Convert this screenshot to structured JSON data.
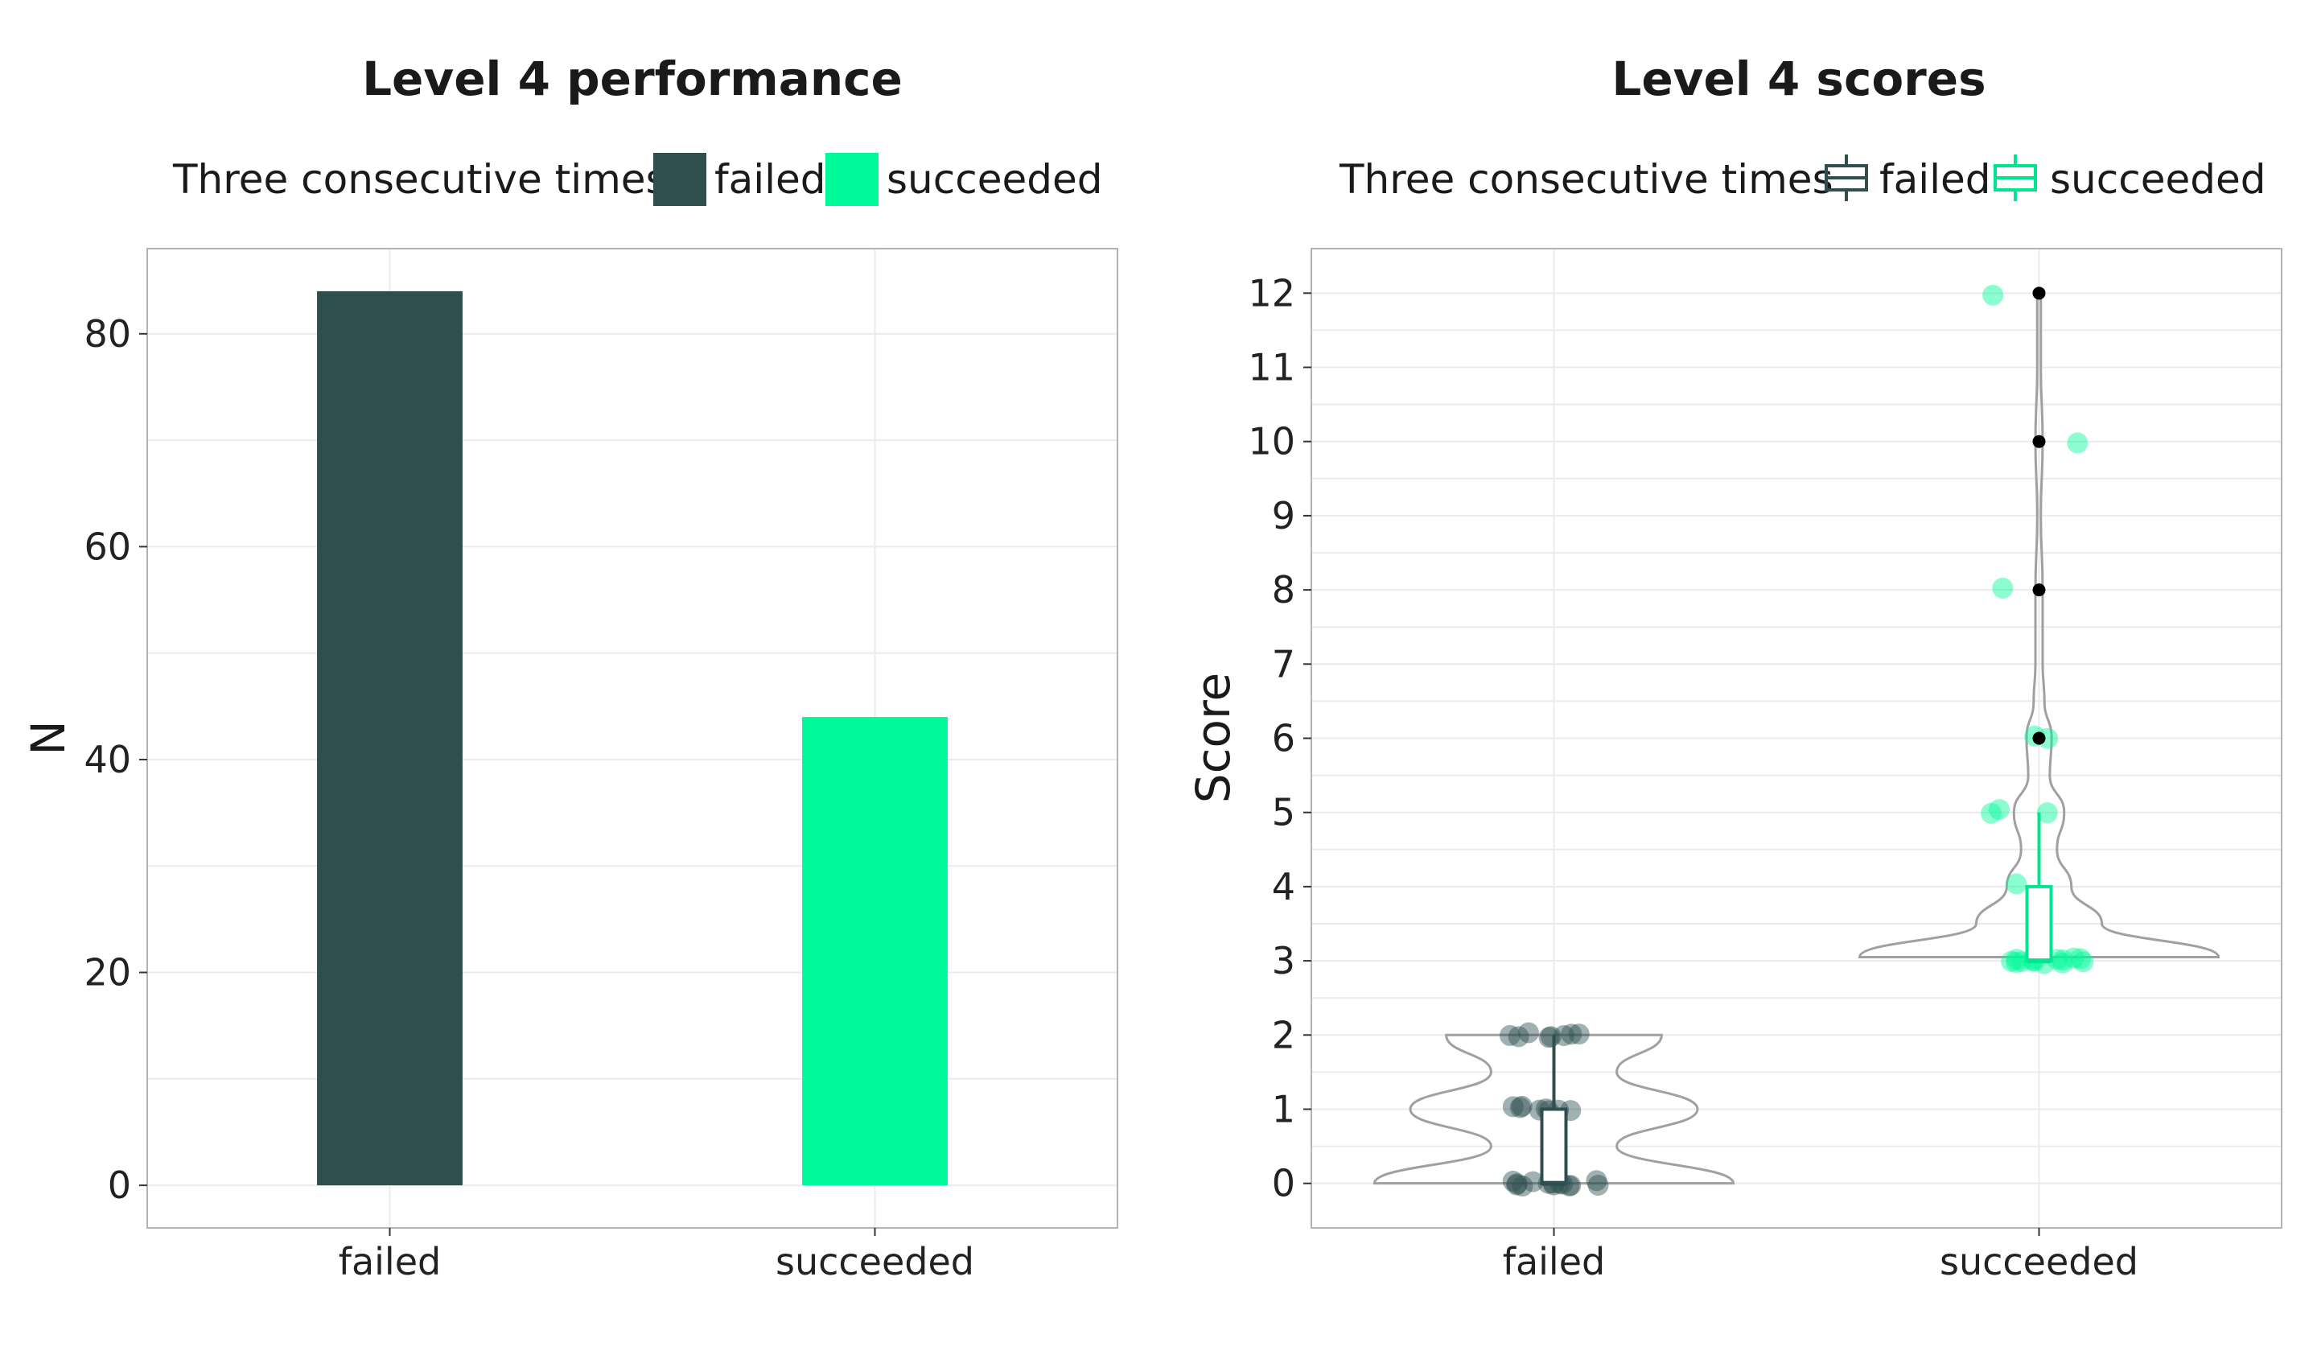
{
  "chart_data": [
    {
      "type": "bar",
      "title": "Level 4 performance",
      "xlabel": "",
      "ylabel": "N",
      "categories": [
        "failed",
        "succeeded"
      ],
      "values": [
        84,
        44
      ],
      "ylim": [
        -4,
        88
      ],
      "yticks": [
        0,
        20,
        40,
        60,
        80
      ],
      "legend": {
        "title": "Three consecutive times",
        "position": "top",
        "entries": [
          "failed",
          "succeeded"
        ]
      },
      "colors": {
        "failed": "#2f4f4f",
        "succeeded": "#00fa9a"
      },
      "grid": true
    },
    {
      "type": "scatter",
      "subtype": "violin-boxplot-jitter",
      "title": "Level 4 scores",
      "xlabel": "",
      "ylabel": "Score",
      "categories": [
        "failed",
        "succeeded"
      ],
      "ylim": [
        -0.6,
        12.6
      ],
      "yticks": [
        0,
        1,
        2,
        3,
        4,
        5,
        6,
        7,
        8,
        9,
        10,
        11,
        12
      ],
      "legend": {
        "title": "Three consecutive times",
        "position": "top",
        "entries": [
          "failed",
          "succeeded"
        ]
      },
      "colors": {
        "failed": "#2f4f4f",
        "succeeded": "#00fa9a",
        "violin": "#a0a0a0",
        "outlier": "#000000"
      },
      "grid": true,
      "boxplots": [
        {
          "category": "failed",
          "min": 0,
          "q1": 0,
          "median": 0,
          "q3": 1,
          "max": 2,
          "outliers": []
        },
        {
          "category": "succeeded",
          "min": 3,
          "q1": 3,
          "median": 3,
          "q3": 4,
          "max": 5,
          "outliers": [
            6,
            8,
            10,
            12
          ]
        }
      ],
      "violins": [
        {
          "category": "failed",
          "y": [
            0,
            0.5,
            1,
            1.5,
            2
          ],
          "density": [
            1.0,
            0.35,
            0.8,
            0.35,
            0.6
          ]
        },
        {
          "category": "succeeded",
          "y": [
            3.05,
            3.5,
            4,
            4.5,
            5,
            5.5,
            6,
            6.5,
            7,
            8,
            9,
            10,
            11,
            12
          ],
          "density": [
            1.0,
            0.35,
            0.18,
            0.1,
            0.14,
            0.06,
            0.07,
            0.03,
            0.02,
            0.02,
            0.01,
            0.02,
            0.01,
            0.01
          ]
        }
      ],
      "points": [
        {
          "category": "failed",
          "values": [
            0,
            0,
            0,
            0,
            0,
            0,
            0,
            0,
            0,
            0,
            0,
            0,
            0,
            0,
            1,
            1,
            1,
            1,
            1,
            1,
            1,
            1,
            2,
            2,
            2,
            2,
            2,
            2,
            2,
            2
          ]
        },
        {
          "category": "succeeded",
          "values": [
            3,
            3,
            3,
            3,
            3,
            3,
            3,
            3,
            3,
            3,
            3,
            3,
            3,
            3,
            4,
            5,
            5,
            5,
            6,
            6,
            8,
            10,
            12
          ]
        }
      ]
    }
  ]
}
